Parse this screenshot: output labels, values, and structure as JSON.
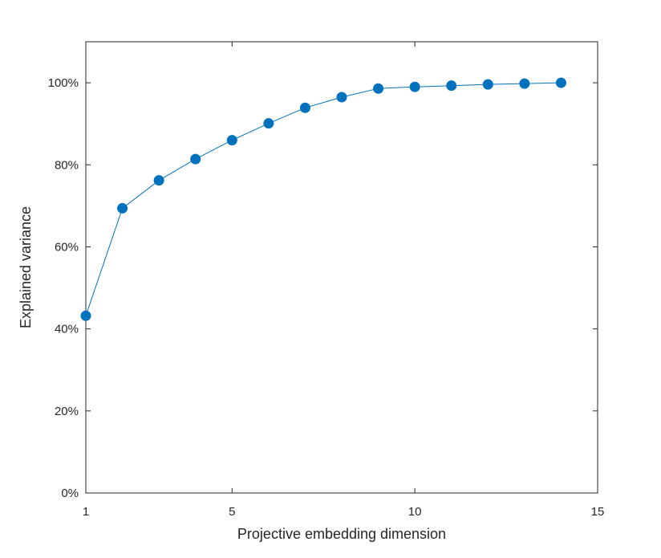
{
  "chart_data": {
    "type": "line",
    "title": "",
    "xlabel": "Projective embedding dimension",
    "ylabel": "Explained variance",
    "xlim": [
      1,
      15
    ],
    "ylim": [
      0,
      110
    ],
    "xticks": [
      1,
      5,
      10,
      15
    ],
    "yticks": [
      0,
      20,
      40,
      60,
      80,
      100
    ],
    "ytick_format": "percent",
    "grid": false,
    "box": true,
    "series": [
      {
        "color": "#0072BD",
        "marker": "filled-circle",
        "x": [
          1,
          2,
          3,
          4,
          5,
          6,
          7,
          8,
          9,
          10,
          11,
          12,
          13,
          14
        ],
        "y": [
          43.2,
          69.4,
          76.2,
          81.4,
          86.0,
          90.1,
          93.9,
          96.5,
          98.6,
          99.0,
          99.3,
          99.6,
          99.8,
          100.0
        ]
      }
    ]
  }
}
